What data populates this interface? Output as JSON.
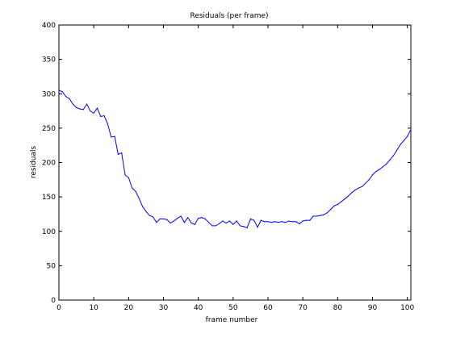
{
  "chart_data": {
    "type": "line",
    "title": "Residuals (per frame)",
    "xlabel": "frame number",
    "ylabel": "residuals",
    "xlim": [
      0,
      101
    ],
    "ylim": [
      0,
      400
    ],
    "xticks": [
      0,
      10,
      20,
      30,
      40,
      50,
      60,
      70,
      80,
      90,
      100
    ],
    "yticks": [
      0,
      50,
      100,
      150,
      200,
      250,
      300,
      350,
      400
    ],
    "grid": false,
    "line_color": "#0000ff",
    "series": [
      {
        "x": [
          0,
          1,
          2,
          3,
          4,
          5,
          6,
          7,
          8,
          9,
          10,
          11,
          12,
          13,
          14,
          15,
          16,
          17,
          18,
          19,
          20,
          21,
          22,
          23,
          24,
          25,
          26,
          27,
          28,
          29,
          30,
          31,
          32,
          33,
          34,
          35,
          36,
          37,
          38,
          39,
          40,
          41,
          42,
          43,
          44,
          45,
          46,
          47,
          48,
          49,
          50,
          51,
          52,
          53,
          54,
          55,
          56,
          57,
          58,
          59,
          60,
          61,
          62,
          63,
          64,
          65,
          66,
          67,
          68,
          69,
          70,
          71,
          72,
          73,
          74,
          75,
          76,
          77,
          78,
          79,
          80,
          81,
          82,
          83,
          84,
          85,
          86,
          87,
          88,
          89,
          90,
          91,
          92,
          93,
          94,
          95,
          96,
          97,
          98,
          99,
          100,
          101
        ],
        "values": [
          305,
          303,
          296,
          293,
          285,
          280,
          278,
          277,
          285,
          275,
          272,
          279,
          267,
          268,
          256,
          237,
          238,
          212,
          214,
          182,
          178,
          163,
          158,
          148,
          136,
          129,
          123,
          121,
          113,
          118,
          118,
          117,
          112,
          115,
          119,
          122,
          113,
          120,
          112,
          110,
          119,
          120,
          118,
          113,
          108,
          108,
          111,
          115,
          112,
          115,
          110,
          115,
          108,
          107,
          105,
          118,
          116,
          106,
          116,
          114,
          114,
          113,
          114,
          113,
          114,
          113,
          115,
          114,
          114,
          111,
          115,
          116,
          116,
          122,
          122,
          123,
          124,
          127,
          132,
          137,
          139,
          143,
          147,
          151,
          156,
          160,
          163,
          165,
          170,
          175,
          182,
          187,
          190,
          194,
          198,
          204,
          210,
          218,
          226,
          232,
          238,
          248
        ]
      }
    ]
  }
}
